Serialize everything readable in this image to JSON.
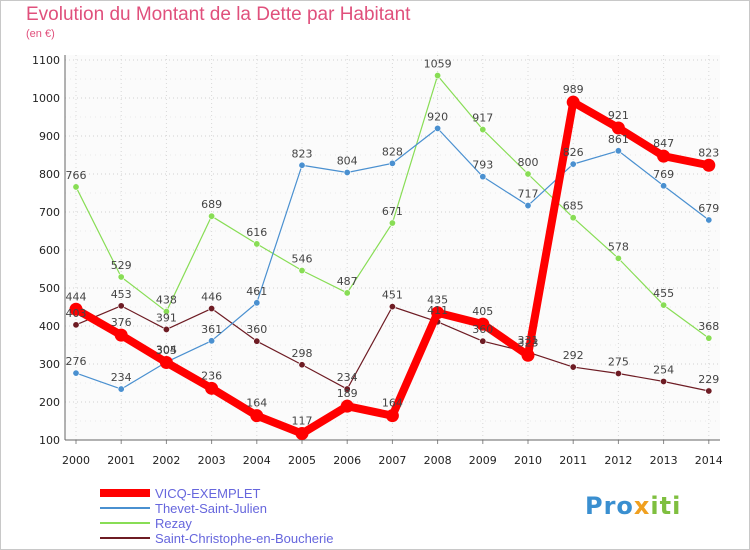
{
  "title": "Evolution du Montant de la Dette par Habitant",
  "subtitle": "(en €)",
  "logo": {
    "p1": "Pro",
    "p2": "x",
    "p3": "iti"
  },
  "chart_data": {
    "type": "line",
    "title": "Evolution du Montant de la Dette par Habitant",
    "ylabel": "(en €)",
    "xlabel": "",
    "ylim": [
      100,
      1100
    ],
    "yticks": [
      "100",
      "200",
      "300",
      "400",
      "500",
      "600",
      "700",
      "800",
      "900",
      "1000",
      "1100"
    ],
    "grid": true,
    "legend_position": "bottom-left",
    "x": [
      "2000",
      "2001",
      "2002",
      "2003",
      "2004",
      "2005",
      "2006",
      "2007",
      "2008",
      "2009",
      "2010",
      "2011",
      "2012",
      "2013",
      "2014"
    ],
    "series": [
      {
        "name": "VICQ-EXEMPLET",
        "color": "#ff0000",
        "values": [
          444,
          376,
          304,
          236,
          164,
          117,
          189,
          164,
          435,
          405,
          323,
          989,
          921,
          847,
          823
        ]
      },
      {
        "name": "Thevet-Saint-Julien",
        "color": "#4a90d0",
        "values": [
          276,
          234,
          305,
          361,
          461,
          823,
          804,
          828,
          920,
          793,
          717,
          826,
          861,
          769,
          679
        ]
      },
      {
        "name": "Rezay",
        "color": "#88dd55",
        "values": [
          766,
          529,
          438,
          689,
          616,
          546,
          487,
          671,
          1059,
          917,
          800,
          685,
          578,
          455,
          368
        ]
      },
      {
        "name": "Saint-Christophe-en-Boucherie",
        "color": "#6e1c24",
        "values": [
          403,
          453,
          391,
          446,
          360,
          298,
          234,
          451,
          411,
          360,
          331,
          292,
          275,
          254,
          229
        ]
      }
    ]
  }
}
